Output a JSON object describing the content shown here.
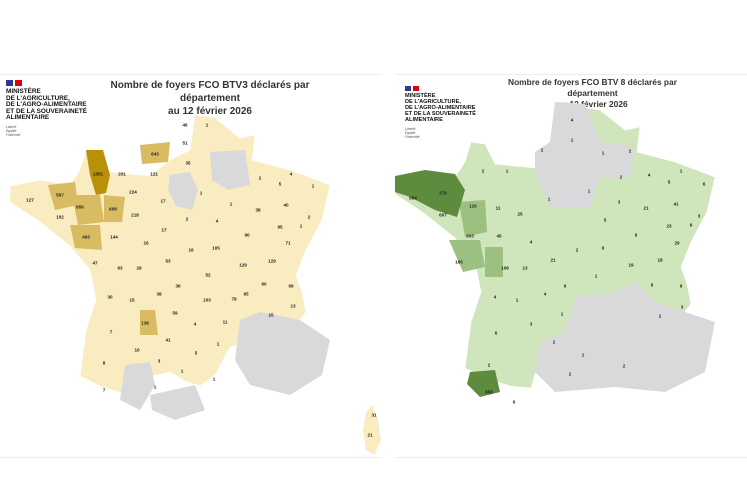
{
  "maps": [
    {
      "title_line1": "Nombre de foyers FCO BTV3 déclarés par département",
      "title_line2": "au 12 février 2026",
      "ministry": [
        "MINISTÈRE",
        "DE L'AGRICULTURE,",
        "DE L'AGRO-ALIMENTAIRE",
        "ET DE LA SOUVERAINETÉ",
        "ALIMENTAIRE"
      ],
      "motto": [
        "Liberté",
        "Égalité",
        "Fraternité"
      ],
      "fill_color": "#f8ecc0",
      "dark_color": "#b8900a",
      "mid_color": "#d9bc62",
      "none_color": "#d9d9dc",
      "labels": [
        "46",
        "1",
        "51",
        "643",
        "35",
        "1301",
        "201",
        "121",
        "2",
        "4",
        "5",
        "1",
        "597",
        "127",
        "224",
        "17",
        "1",
        "856",
        "608",
        "1",
        "38",
        "40",
        "102",
        "218",
        "2",
        "4",
        "2",
        "95",
        "1",
        "17",
        "493",
        "144",
        "90",
        "16",
        "71",
        "16",
        "105",
        "47",
        "53",
        "63",
        "29",
        "129",
        "129",
        "52",
        "36",
        "60",
        "69",
        "30",
        "15",
        "38",
        "103",
        "78",
        "95",
        "13",
        "15",
        "59",
        "138",
        "4",
        "11",
        "7",
        "41",
        "1",
        "10",
        "5",
        "8",
        "3",
        "1",
        "1",
        "7",
        "1",
        "31",
        "21"
      ]
    },
    {
      "title_line1": "Nombre de foyers FCO BTV 8 déclarés par département",
      "title_line2": "au 12 février 2026",
      "ministry": [
        "MINISTÈRE",
        "DE L'AGRICULTURE,",
        "DE L'AGRO-ALIMENTAIRE",
        "ET DE LA SOUVERAINETÉ",
        "ALIMENTAIRE"
      ],
      "motto": [
        "Liberté",
        "Égalité",
        "Fraternité"
      ],
      "fill_color": "#cfe5bc",
      "dark_color": "#5e8c3e",
      "mid_color": "#9cc080",
      "none_color": "#d9d9dc",
      "labels": [
        "4",
        "1",
        "2",
        "1",
        "2",
        "2",
        "1",
        "2",
        "4",
        "1",
        "5",
        "6",
        "884",
        "379",
        "1",
        "1",
        "116",
        "11",
        "3",
        "21",
        "41",
        "607",
        "25",
        "5",
        "3",
        "23",
        "6",
        "303",
        "45",
        "4",
        "6",
        "29",
        "2",
        "6",
        "165",
        "21",
        "18",
        "106",
        "13",
        "19",
        "1",
        "6",
        "9",
        "6",
        "4",
        "1",
        "4",
        "3",
        "1",
        "3",
        "2",
        "6",
        "2",
        "1",
        "2",
        "2",
        "2",
        "858",
        "6"
      ]
    }
  ]
}
